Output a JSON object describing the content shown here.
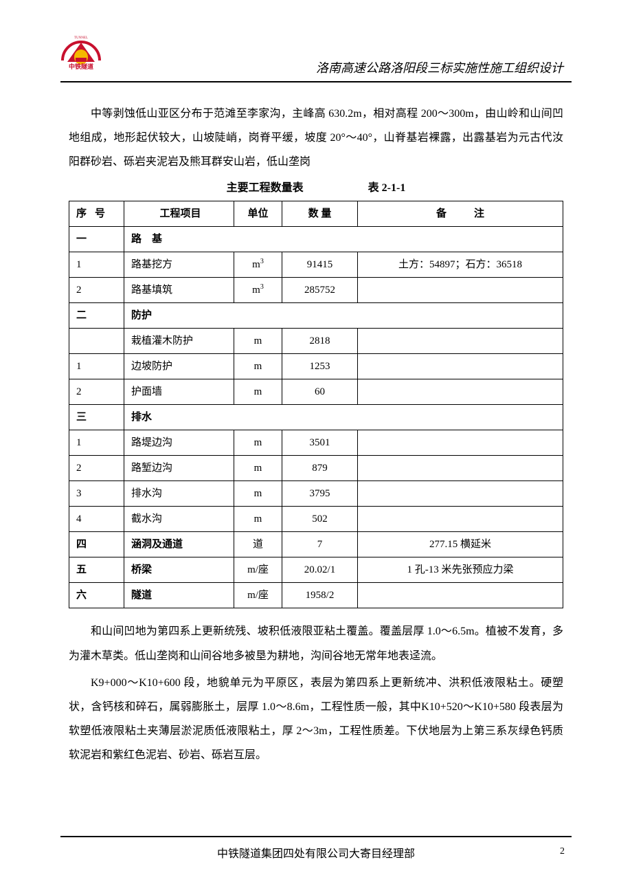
{
  "header": {
    "title": "洛南高速公路洛阳段三标实施性施工组织设计",
    "logo_text_top": "TUNNEL",
    "logo_text_cn": "中铁隧道"
  },
  "paragraphs": {
    "p1": "中等剥蚀低山亚区分布于范滩至李家沟，主峰高 630.2m，相对高程 200～300m，由山岭和山间凹地组成，地形起伏较大，山坡陡峭，岗脊平缓，坡度 20°～40°，山脊基岩裸露，出露基岩为元古代汝阳群砂岩、砾岩夹泥岩及熊耳群安山岩，低山垄岗",
    "p2": "和山间凹地为第四系上更新统残、坡积低液限亚粘土覆盖。覆盖层厚 1.0～6.5m。植被不发育，多为灌木草类。低山垄岗和山间谷地多被垦为耕地，沟间谷地无常年地表迳流。",
    "p3": "K9+000～K10+600 段，地貌单元为平原区，表层为第四系上更新统冲、洪积低液限粘土。硬塑状，含钙核和碎石，属弱膨胀土，层厚 1.0～8.6m，工程性质一般，其中K10+520～K10+580 段表层为软塑低液限粘土夹薄层淤泥质低液限粘土，厚 2～3m，工程性质差。下伏地层为上第三系灰绿色钙质软泥岩和紫红色泥岩、砂岩、砾岩互层。"
  },
  "table": {
    "caption_left": "主要工程数量表",
    "caption_right": "表 2-1-1",
    "headers": {
      "seq": "序号",
      "item": "工程项目",
      "unit": "单位",
      "qty": "数 量",
      "note": "备注"
    },
    "rows": [
      {
        "type": "section",
        "seq": "一",
        "item": "路　基"
      },
      {
        "type": "data",
        "seq": "1",
        "item": "路基挖方",
        "unit": "m",
        "sup": "3",
        "qty": "91415",
        "note": "土方：54897；石方：36518"
      },
      {
        "type": "data",
        "seq": "2",
        "item": "路基填筑",
        "unit": "m",
        "sup": "3",
        "qty": "285752",
        "note": ""
      },
      {
        "type": "section",
        "seq": "二",
        "item": "防护"
      },
      {
        "type": "data",
        "seq": "",
        "item": "栽植灌木防护",
        "unit": "m",
        "qty": "2818",
        "note": ""
      },
      {
        "type": "data",
        "seq": "1",
        "item": "边坡防护",
        "unit": "m",
        "qty": "1253",
        "note": ""
      },
      {
        "type": "data",
        "seq": "2",
        "item": "护面墙",
        "unit": "m",
        "qty": "60",
        "note": ""
      },
      {
        "type": "section",
        "seq": "三",
        "item": "排水"
      },
      {
        "type": "data",
        "seq": "1",
        "item": "路堤边沟",
        "unit": "m",
        "qty": "3501",
        "note": ""
      },
      {
        "type": "data",
        "seq": "2",
        "item": "路堑边沟",
        "unit": "m",
        "qty": "879",
        "note": ""
      },
      {
        "type": "data",
        "seq": "3",
        "item": "排水沟",
        "unit": "m",
        "qty": "3795",
        "note": ""
      },
      {
        "type": "data",
        "seq": "4",
        "item": "截水沟",
        "unit": "m",
        "qty": "502",
        "note": ""
      },
      {
        "type": "single",
        "seq": "四",
        "item": "涵洞及通道",
        "unit": "道",
        "qty": "7",
        "note": "277.15 横延米"
      },
      {
        "type": "single",
        "seq": "五",
        "item": "桥梁",
        "unit": "m/座",
        "qty": "20.02/1",
        "note": "1 孔-13 米先张预应力梁"
      },
      {
        "type": "single",
        "seq": "六",
        "item": "隧道",
        "unit": "m/座",
        "qty": "1958/2",
        "note": ""
      }
    ]
  },
  "footer": {
    "text": "中铁隧道集团四处有限公司大寄目经理部",
    "page": "2"
  },
  "colors": {
    "logo_red": "#c8102e",
    "logo_yellow": "#f5b800"
  }
}
